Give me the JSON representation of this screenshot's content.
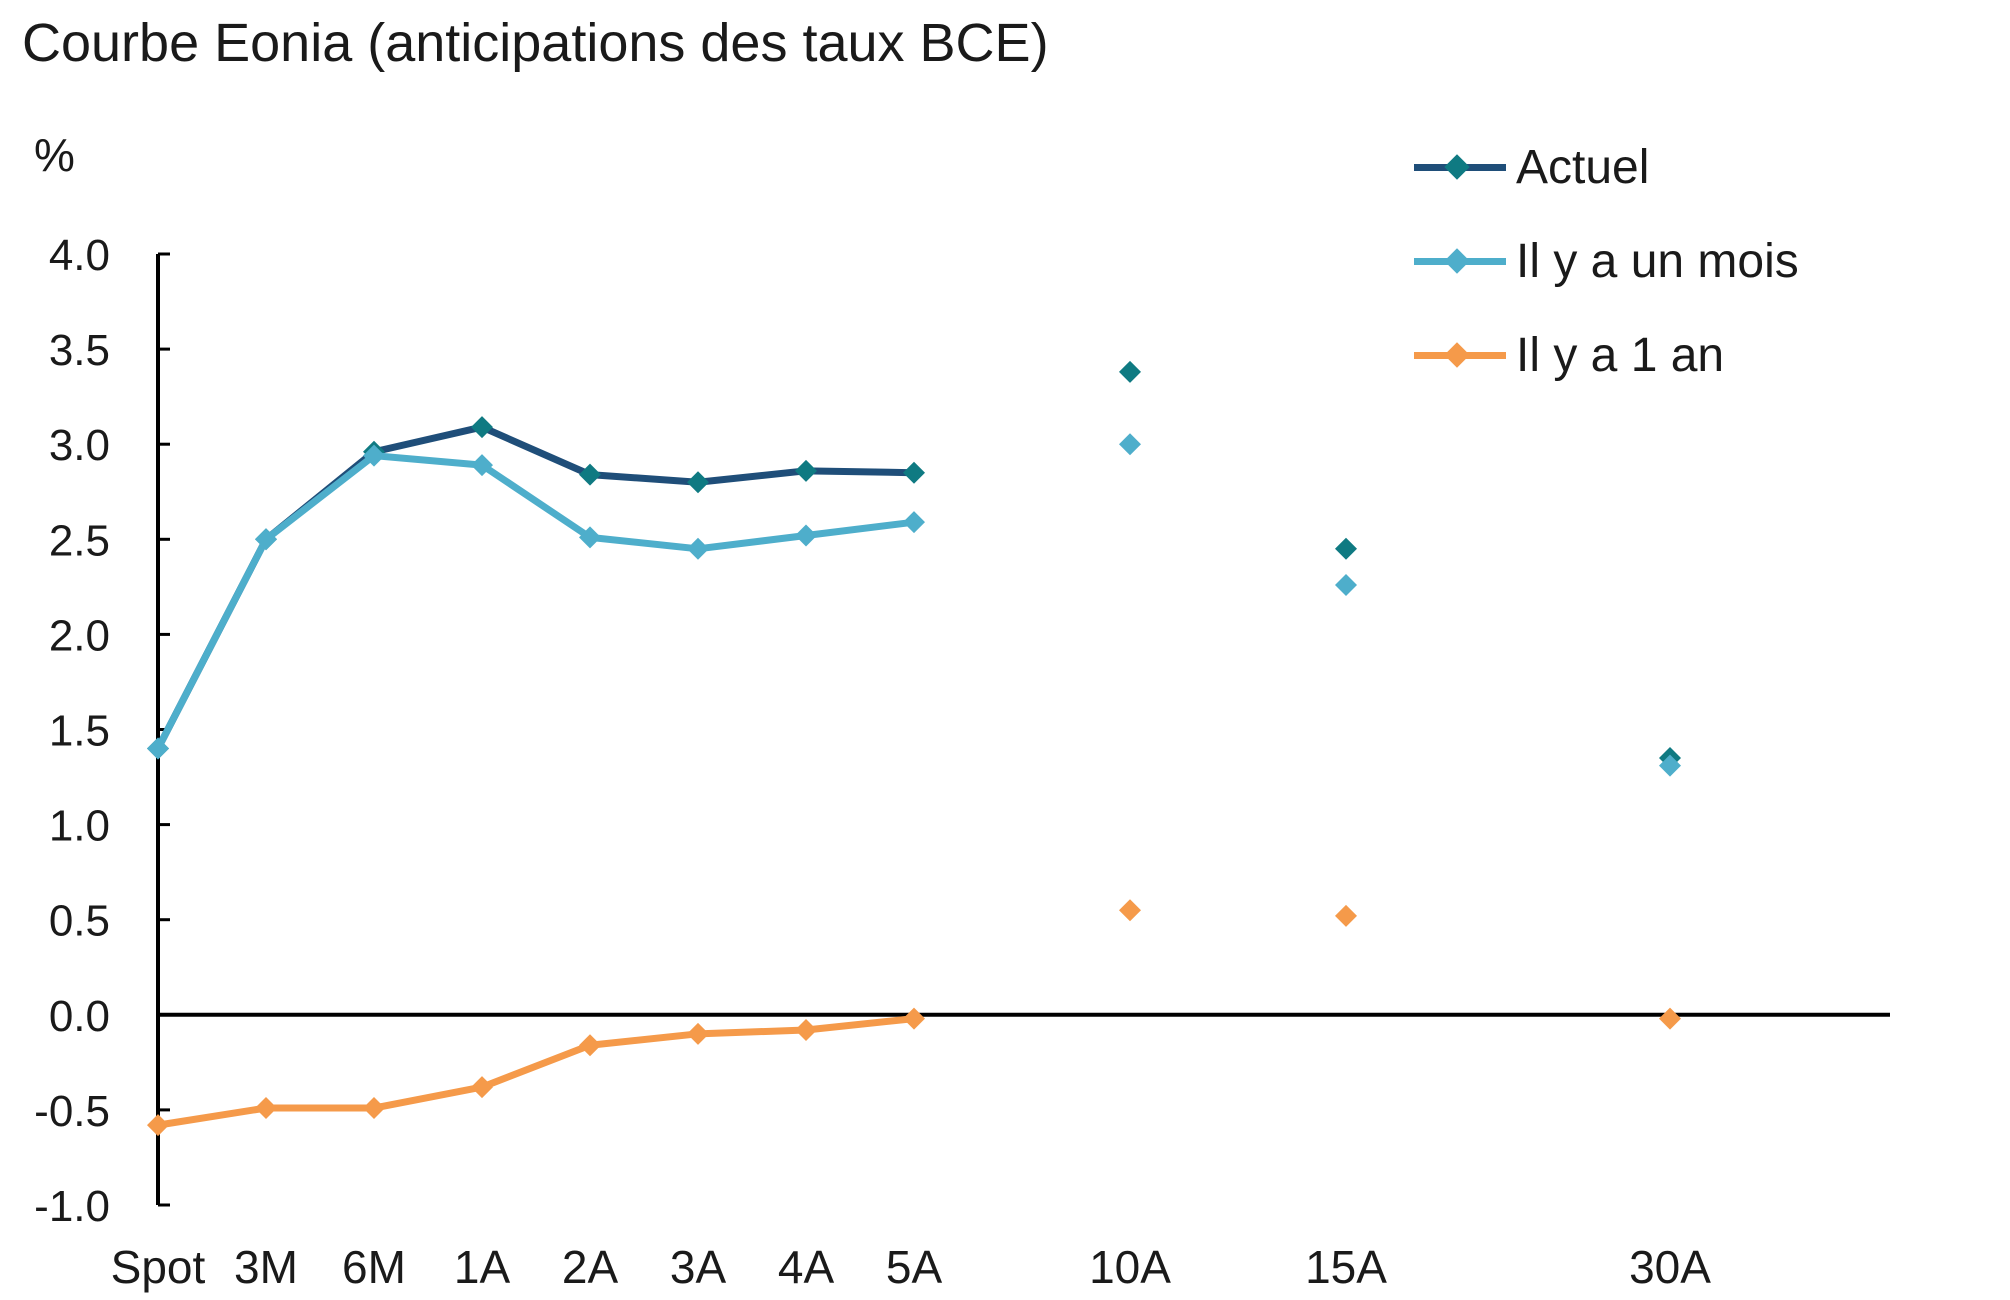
{
  "chart_data": {
    "type": "line",
    "title": "Courbe Eonia (anticipations des taux BCE)",
    "ylabel": "%",
    "xlabel": "",
    "ylim": [
      -1.0,
      4.0
    ],
    "yticks": [
      "4.0",
      "3.5",
      "3.0",
      "2.5",
      "2.0",
      "1.5",
      "1.0",
      "0.5",
      "0.0",
      "-0.5",
      "-1.0"
    ],
    "categories": [
      "Spot",
      "3M",
      "6M",
      "1A",
      "2A",
      "3A",
      "4A",
      "5A",
      "10A",
      "15A",
      "30A"
    ],
    "legend_position": "top-right",
    "grid": false,
    "series": [
      {
        "name": "Actuel",
        "color": "#1f4e79",
        "marker_color": "#0f7a82",
        "values": [
          1.4,
          2.5,
          2.96,
          3.09,
          2.84,
          2.8,
          2.86,
          2.85,
          3.38,
          2.45,
          1.35
        ]
      },
      {
        "name": "Il y a un mois",
        "color": "#4eaecb",
        "marker_color": "#4eaecb",
        "values": [
          1.4,
          2.5,
          2.94,
          2.89,
          2.51,
          2.45,
          2.52,
          2.59,
          3.0,
          2.26,
          1.31
        ]
      },
      {
        "name": "Il y a 1 an",
        "color": "#f59a4a",
        "marker_color": "#f59a4a",
        "values": [
          -0.58,
          -0.49,
          -0.49,
          -0.38,
          -0.16,
          -0.1,
          -0.08,
          -0.02,
          0.55,
          0.52,
          -0.02
        ]
      }
    ]
  }
}
